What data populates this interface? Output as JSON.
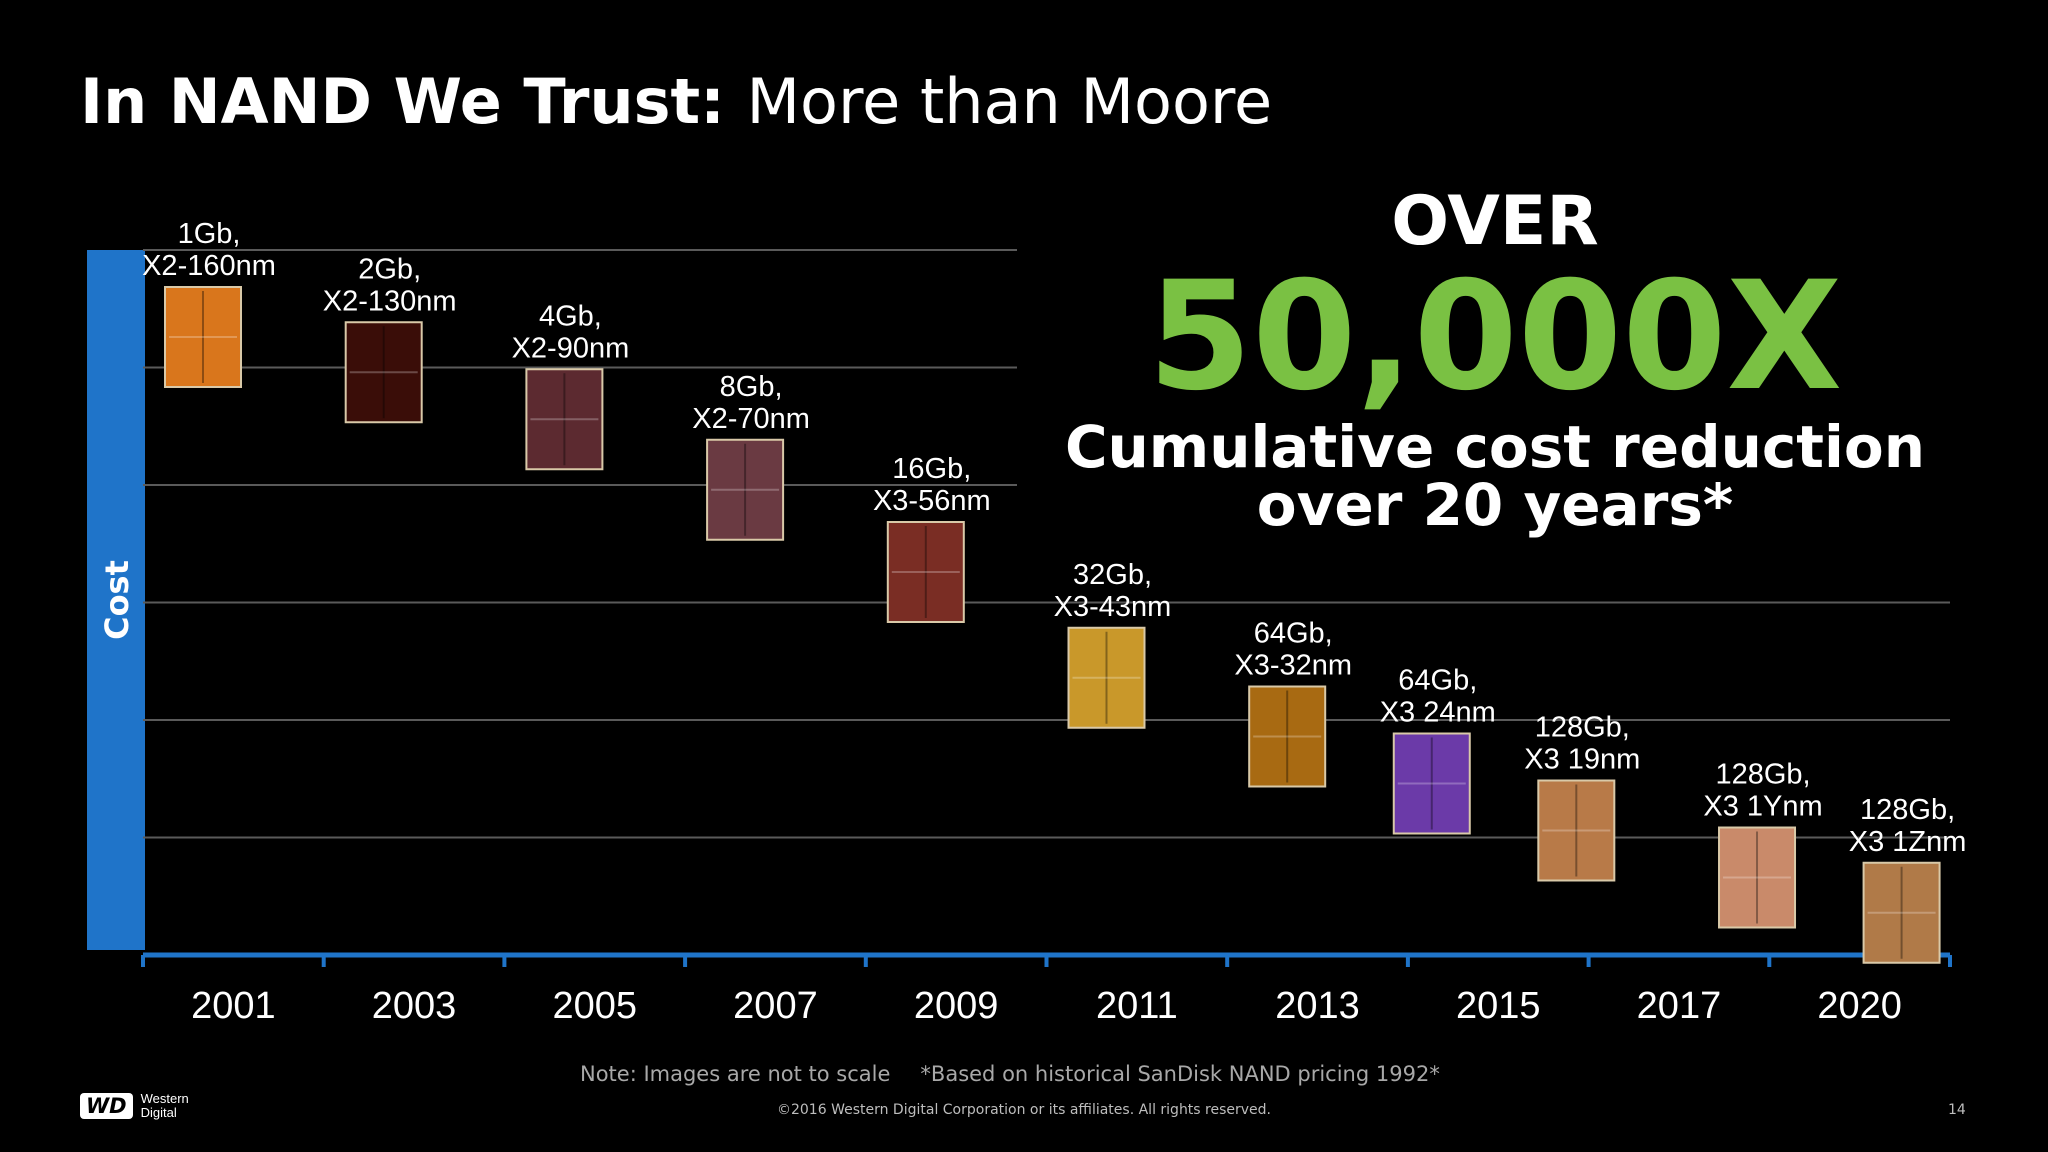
{
  "title": {
    "bold": "In NAND We Trust:",
    "rest": "More than Moore"
  },
  "headline": {
    "over": "OVER",
    "factor": "50,000X",
    "line1": "Cumulative cost reduction",
    "line2": "over 20 years*"
  },
  "footer": {
    "note1": "Note: Images are not to scale",
    "note2": "*Based on historical SanDisk NAND pricing 1992*",
    "copyright": "©2016 Western Digital Corporation or its affiliates. All rights reserved.",
    "page": "14",
    "logo_mark": "WD",
    "logo_text": "Western Digital"
  },
  "colors": {
    "accent_green": "#7ac143",
    "axis_blue": "#1f74c9",
    "gridline": "#5a5a5a"
  },
  "chart_data": {
    "type": "scatter",
    "title": "",
    "xlabel": "",
    "ylabel": "Cost",
    "y_axis": "relative cost, no numeric scale (0 = top, 6 = baseline)",
    "xticks": [
      "2001",
      "2003",
      "2005",
      "2007",
      "2009",
      "2011",
      "2013",
      "2015",
      "2017",
      "2020"
    ],
    "gridlines": 6,
    "points": [
      {
        "label1": "1Gb,",
        "label2": "X2-160nm",
        "x": 0.0,
        "y": 0.4,
        "color": "#d9761c",
        "icon": "die-image"
      },
      {
        "label1": "2Gb,",
        "label2": "X2-130nm",
        "x": 1.0,
        "y": 0.7,
        "color": "#3a0d08",
        "icon": "die-image"
      },
      {
        "label1": "4Gb,",
        "label2": "X2-90nm",
        "x": 2.0,
        "y": 1.1,
        "color": "#5c2a30",
        "icon": "die-image"
      },
      {
        "label1": "8Gb,",
        "label2": "X2-70nm",
        "x": 3.0,
        "y": 1.7,
        "color": "#6a3a42",
        "icon": "die-image"
      },
      {
        "label1": "16Gb,",
        "label2": "X3-56nm",
        "x": 4.0,
        "y": 2.4,
        "color": "#7a2d24",
        "icon": "die-image"
      },
      {
        "label1": "32Gb,",
        "label2": "X3-43nm",
        "x": 5.0,
        "y": 3.3,
        "color": "#c9982a",
        "icon": "die-image"
      },
      {
        "label1": "64Gb,",
        "label2": "X3-32nm",
        "x": 6.0,
        "y": 3.8,
        "color": "#a86a12",
        "icon": "die-image"
      },
      {
        "label1": "64Gb,",
        "label2": "X3 24nm",
        "x": 6.8,
        "y": 4.2,
        "color": "#6b3aa8",
        "icon": "die-image"
      },
      {
        "label1": "128Gb,",
        "label2": "X3 19nm",
        "x": 7.6,
        "y": 4.6,
        "color": "#b87a48",
        "icon": "die-image"
      },
      {
        "label1": "128Gb,",
        "label2": "X3 1Ynm",
        "x": 8.6,
        "y": 5.0,
        "color": "#c98a6a",
        "icon": "die-image"
      },
      {
        "label1": "128Gb,",
        "label2": "X3 1Znm",
        "x": 9.4,
        "y": 5.3,
        "color": "#b07a48",
        "icon": "die-image"
      }
    ]
  }
}
